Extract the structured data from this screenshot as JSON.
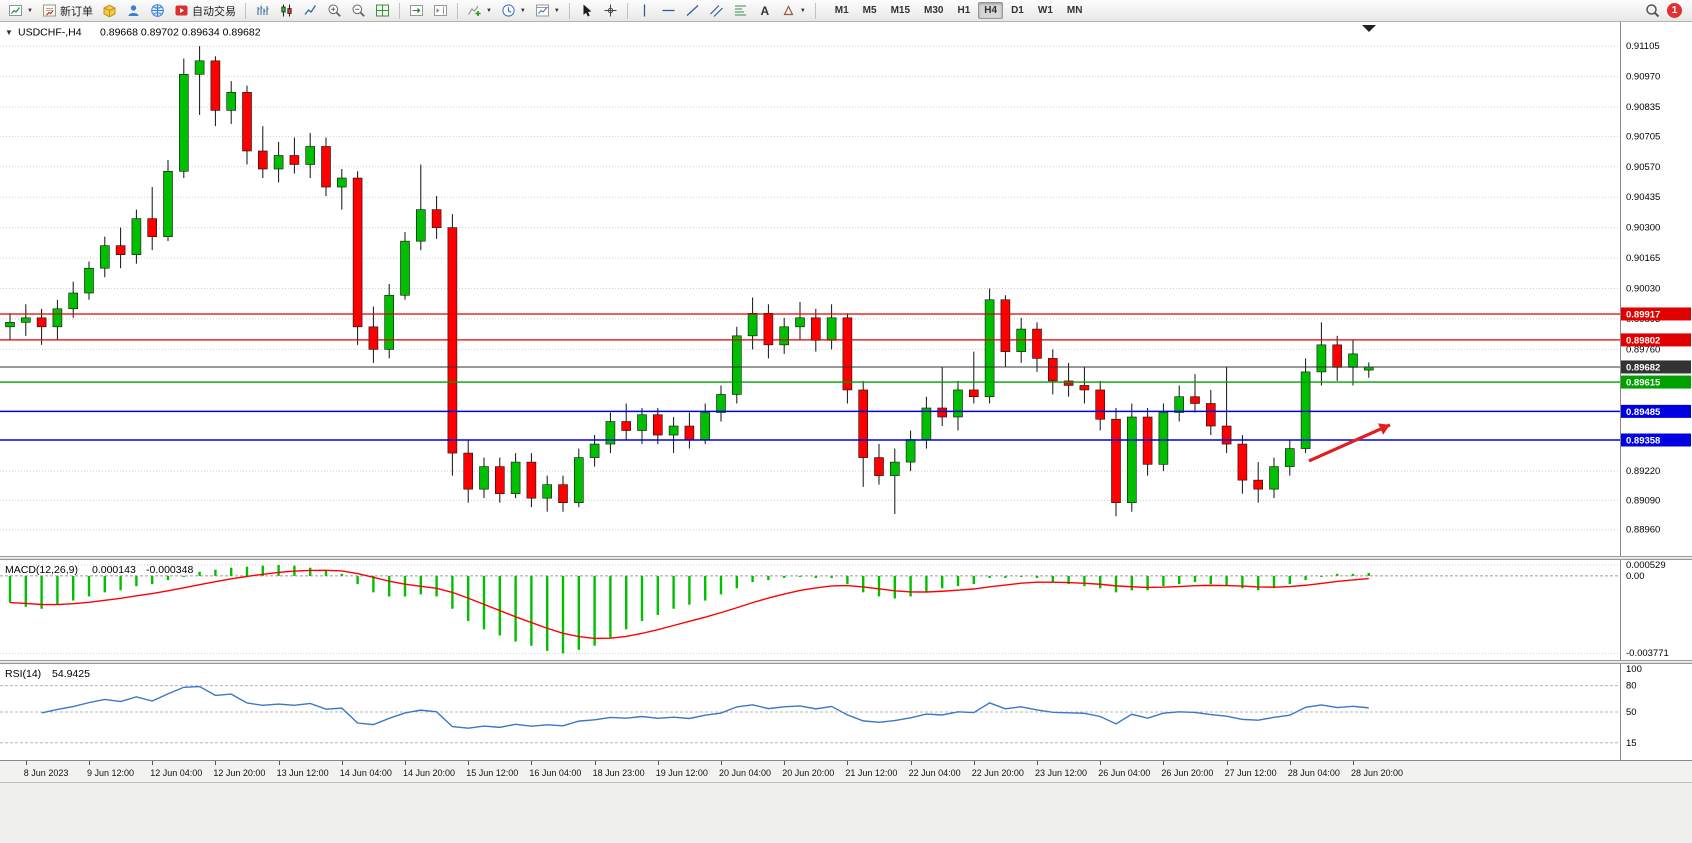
{
  "window": {
    "symbol_title": "USDCHF-,H4",
    "ohlc": "0.89668 0.89702 0.89634 0.89682"
  },
  "toolbar": {
    "new_order_label": "新订单",
    "autotrading_label": "自动交易",
    "timeframes": [
      "M1",
      "M5",
      "M15",
      "M30",
      "H1",
      "H4",
      "D1",
      "W1",
      "MN"
    ],
    "active_timeframe": "H4",
    "notification_count": "1"
  },
  "chart_data": {
    "type": "candlestick",
    "symbol": "USDCHF",
    "timeframe": "H4",
    "up_color": "#00be00",
    "down_color": "#ff0000",
    "price_range": {
      "max": 0.9115,
      "min": 0.8891
    },
    "price_axis_ticks": [
      0.91105,
      0.9097,
      0.90835,
      0.90705,
      0.9057,
      0.90435,
      0.903,
      0.90165,
      0.9003,
      0.89895,
      0.8976,
      0.8922,
      0.8909,
      0.8896
    ],
    "horizontal_lines": [
      {
        "price": 0.89917,
        "color": "#e00000",
        "badge": "0.89917",
        "type": "resistance-line",
        "width": 1.3
      },
      {
        "price": 0.89802,
        "color": "#e00000",
        "badge": "0.89802",
        "type": "resistance-line",
        "width": 1.3
      },
      {
        "price": 0.89682,
        "color": "#333333",
        "badge": "0.89682",
        "type": "current-price-line",
        "width": 1
      },
      {
        "price": 0.89615,
        "color": "#00a000",
        "badge": "0.89615",
        "type": "support-line",
        "width": 1.3
      },
      {
        "price": 0.89485,
        "color": "#0000e0",
        "badge": "0.89485",
        "type": "support-line",
        "width": 1.5
      },
      {
        "price": 0.89358,
        "color": "#0000e0",
        "badge": "0.89358",
        "type": "support-line",
        "width": 1.5
      }
    ],
    "candles": [
      [
        0.8986,
        0.8992,
        0.898,
        0.8988
      ],
      [
        0.8988,
        0.8996,
        0.8982,
        0.899
      ],
      [
        0.899,
        0.8994,
        0.8978,
        0.8986
      ],
      [
        0.8986,
        0.8998,
        0.898,
        0.8994
      ],
      [
        0.8994,
        0.9006,
        0.899,
        0.9001
      ],
      [
        0.9001,
        0.9015,
        0.8998,
        0.9012
      ],
      [
        0.9012,
        0.9026,
        0.9008,
        0.9022
      ],
      [
        0.9022,
        0.903,
        0.9012,
        0.9018
      ],
      [
        0.9018,
        0.9038,
        0.9014,
        0.9034
      ],
      [
        0.9034,
        0.9048,
        0.902,
        0.9026
      ],
      [
        0.9026,
        0.906,
        0.9024,
        0.9055
      ],
      [
        0.9055,
        0.9105,
        0.9052,
        0.9098
      ],
      [
        0.9098,
        0.91105,
        0.908,
        0.9104
      ],
      [
        0.9104,
        0.9106,
        0.9075,
        0.9082
      ],
      [
        0.9082,
        0.9095,
        0.9076,
        0.909
      ],
      [
        0.909,
        0.9093,
        0.9058,
        0.9064
      ],
      [
        0.9064,
        0.9075,
        0.9052,
        0.9056
      ],
      [
        0.9056,
        0.9068,
        0.905,
        0.9062
      ],
      [
        0.9062,
        0.907,
        0.9054,
        0.9058
      ],
      [
        0.9058,
        0.9072,
        0.9052,
        0.9066
      ],
      [
        0.9066,
        0.907,
        0.9044,
        0.9048
      ],
      [
        0.9048,
        0.9056,
        0.9038,
        0.9052
      ],
      [
        0.9052,
        0.9055,
        0.8978,
        0.8986
      ],
      [
        0.8986,
        0.8995,
        0.897,
        0.8976
      ],
      [
        0.8976,
        0.9005,
        0.8972,
        0.9
      ],
      [
        0.9,
        0.9028,
        0.8998,
        0.9024
      ],
      [
        0.9024,
        0.9058,
        0.902,
        0.9038
      ],
      [
        0.9038,
        0.9044,
        0.9025,
        0.903
      ],
      [
        0.903,
        0.9036,
        0.892,
        0.893
      ],
      [
        0.893,
        0.8936,
        0.8908,
        0.8914
      ],
      [
        0.8914,
        0.8928,
        0.891,
        0.8924
      ],
      [
        0.8924,
        0.8928,
        0.8908,
        0.8912
      ],
      [
        0.8912,
        0.893,
        0.891,
        0.8926
      ],
      [
        0.8926,
        0.893,
        0.8906,
        0.891
      ],
      [
        0.891,
        0.892,
        0.8904,
        0.8916
      ],
      [
        0.8916,
        0.892,
        0.8904,
        0.8908
      ],
      [
        0.8908,
        0.8932,
        0.8906,
        0.8928
      ],
      [
        0.8928,
        0.8938,
        0.8924,
        0.8934
      ],
      [
        0.8934,
        0.8948,
        0.893,
        0.8944
      ],
      [
        0.8944,
        0.8952,
        0.8936,
        0.894
      ],
      [
        0.894,
        0.895,
        0.8934,
        0.8947
      ],
      [
        0.8947,
        0.895,
        0.8934,
        0.8938
      ],
      [
        0.8938,
        0.8946,
        0.893,
        0.8942
      ],
      [
        0.8942,
        0.8948,
        0.8932,
        0.8936
      ],
      [
        0.8936,
        0.8952,
        0.8934,
        0.8948
      ],
      [
        0.8948,
        0.896,
        0.8944,
        0.8956
      ],
      [
        0.8956,
        0.8986,
        0.8952,
        0.8982
      ],
      [
        0.8982,
        0.8999,
        0.8976,
        0.8992
      ],
      [
        0.8992,
        0.8996,
        0.8972,
        0.8978
      ],
      [
        0.8978,
        0.899,
        0.8974,
        0.8986
      ],
      [
        0.8986,
        0.8997,
        0.898,
        0.899
      ],
      [
        0.899,
        0.8994,
        0.8975,
        0.898
      ],
      [
        0.898,
        0.8996,
        0.8976,
        0.899
      ],
      [
        0.899,
        0.8992,
        0.8952,
        0.8958
      ],
      [
        0.8958,
        0.8962,
        0.8915,
        0.8928
      ],
      [
        0.8928,
        0.8934,
        0.8916,
        0.892
      ],
      [
        0.892,
        0.8932,
        0.8903,
        0.8926
      ],
      [
        0.8926,
        0.894,
        0.8922,
        0.8936
      ],
      [
        0.8936,
        0.8955,
        0.8932,
        0.895
      ],
      [
        0.895,
        0.8968,
        0.8942,
        0.8946
      ],
      [
        0.8946,
        0.8962,
        0.894,
        0.8958
      ],
      [
        0.8958,
        0.8975,
        0.8952,
        0.8955
      ],
      [
        0.8955,
        0.9003,
        0.8952,
        0.8998
      ],
      [
        0.8998,
        0.9,
        0.8968,
        0.8975
      ],
      [
        0.8975,
        0.899,
        0.897,
        0.8985
      ],
      [
        0.8985,
        0.8988,
        0.8966,
        0.8972
      ],
      [
        0.8972,
        0.8976,
        0.8956,
        0.8962
      ],
      [
        0.8962,
        0.897,
        0.8955,
        0.896
      ],
      [
        0.896,
        0.8968,
        0.8952,
        0.8958
      ],
      [
        0.8958,
        0.8962,
        0.894,
        0.8945
      ],
      [
        0.8945,
        0.895,
        0.8902,
        0.8908
      ],
      [
        0.8908,
        0.8952,
        0.8904,
        0.8946
      ],
      [
        0.8946,
        0.895,
        0.892,
        0.8925
      ],
      [
        0.8925,
        0.8952,
        0.8922,
        0.8948
      ],
      [
        0.8948,
        0.896,
        0.8944,
        0.8955
      ],
      [
        0.8955,
        0.8965,
        0.8948,
        0.8952
      ],
      [
        0.8952,
        0.8958,
        0.8938,
        0.8942
      ],
      [
        0.8942,
        0.8968,
        0.893,
        0.8934
      ],
      [
        0.8934,
        0.8938,
        0.8912,
        0.8918
      ],
      [
        0.8918,
        0.8926,
        0.8908,
        0.8914
      ],
      [
        0.8914,
        0.8928,
        0.891,
        0.8924
      ],
      [
        0.8924,
        0.8936,
        0.892,
        0.8932
      ],
      [
        0.8932,
        0.8972,
        0.893,
        0.8966
      ],
      [
        0.8966,
        0.8988,
        0.896,
        0.8978
      ],
      [
        0.8978,
        0.8982,
        0.8962,
        0.8968
      ],
      [
        0.8968,
        0.898,
        0.896,
        0.8974
      ],
      [
        0.89668,
        0.89702,
        0.89634,
        0.89682
      ]
    ],
    "time_labels": [
      "8 Jun 2023",
      "9 Jun 12:00",
      "12 Jun 04:00",
      "12 Jun 20:00",
      "13 Jun 12:00",
      "14 Jun 04:00",
      "14 Jun 20:00",
      "15 Jun 12:00",
      "16 Jun 04:00",
      "18 Jun 23:00",
      "19 Jun 12:00",
      "20 Jun 04:00",
      "20 Jun 20:00",
      "21 Jun 12:00",
      "22 Jun 04:00",
      "22 Jun 20:00",
      "23 Jun 12:00",
      "26 Jun 04:00",
      "26 Jun 20:00",
      "27 Jun 12:00",
      "28 Jun 04:00",
      "28 Jun 20:00"
    ],
    "annotation_arrow": {
      "color": "#e02020",
      "x1_frac": 0.808,
      "price1": 0.89265,
      "x2_frac": 0.858,
      "price2": 0.89425,
      "note": "red up arrow"
    },
    "macd": {
      "label": "MACD(12,26,9)",
      "value_main": "0.000143",
      "value_signal": "-0.000348",
      "fast": 12,
      "slow": 26,
      "signal": 9,
      "axis_labels": [
        "0.000529",
        "0.00",
        "-0.003771"
      ],
      "axis_values": [
        0.000529,
        0,
        -0.003771
      ],
      "histogram_color": "#00c000",
      "signal_color": "#ff0000",
      "histogram": [
        -0.0013,
        -0.0015,
        -0.0016,
        -0.0014,
        -0.0012,
        -0.001,
        -0.0008,
        -0.0007,
        -0.0005,
        -0.0004,
        -0.0002,
        0.0,
        0.0002,
        0.0003,
        0.0004,
        0.00045,
        0.0005,
        0.000529,
        0.0005,
        0.0004,
        0.0003,
        0.0001,
        -0.0004,
        -0.0008,
        -0.001,
        -0.001,
        -0.0009,
        -0.001,
        -0.0016,
        -0.0022,
        -0.0026,
        -0.0029,
        -0.0032,
        -0.0034,
        -0.00365,
        -0.003771,
        -0.0036,
        -0.0034,
        -0.003,
        -0.0026,
        -0.0022,
        -0.0019,
        -0.0016,
        -0.0014,
        -0.0012,
        -0.0009,
        -0.0006,
        -0.0003,
        -0.0002,
        -0.0001,
        0.0,
        -0.0001,
        -0.0001,
        -0.0004,
        -0.0008,
        -0.001,
        -0.0011,
        -0.001,
        -0.0008,
        -0.0006,
        -0.0005,
        -0.0004,
        -0.0001,
        -0.0001,
        0.0,
        -0.0001,
        -0.0003,
        -0.0004,
        -0.0005,
        -0.0006,
        -0.0008,
        -0.0007,
        -0.0007,
        -0.0005,
        -0.0004,
        -0.0003,
        -0.0004,
        -0.0005,
        -0.0006,
        -0.0007,
        -0.0006,
        -0.0004,
        -0.0002,
        0.0,
        0.0001,
        0.0001,
        0.000143
      ]
    },
    "rsi": {
      "label": "RSI(14)",
      "value": "54.9425",
      "period": 14,
      "levels": [
        80,
        50,
        15
      ],
      "axis_values": [
        100,
        80,
        50,
        15
      ],
      "line_color": "#3878c8"
    }
  }
}
